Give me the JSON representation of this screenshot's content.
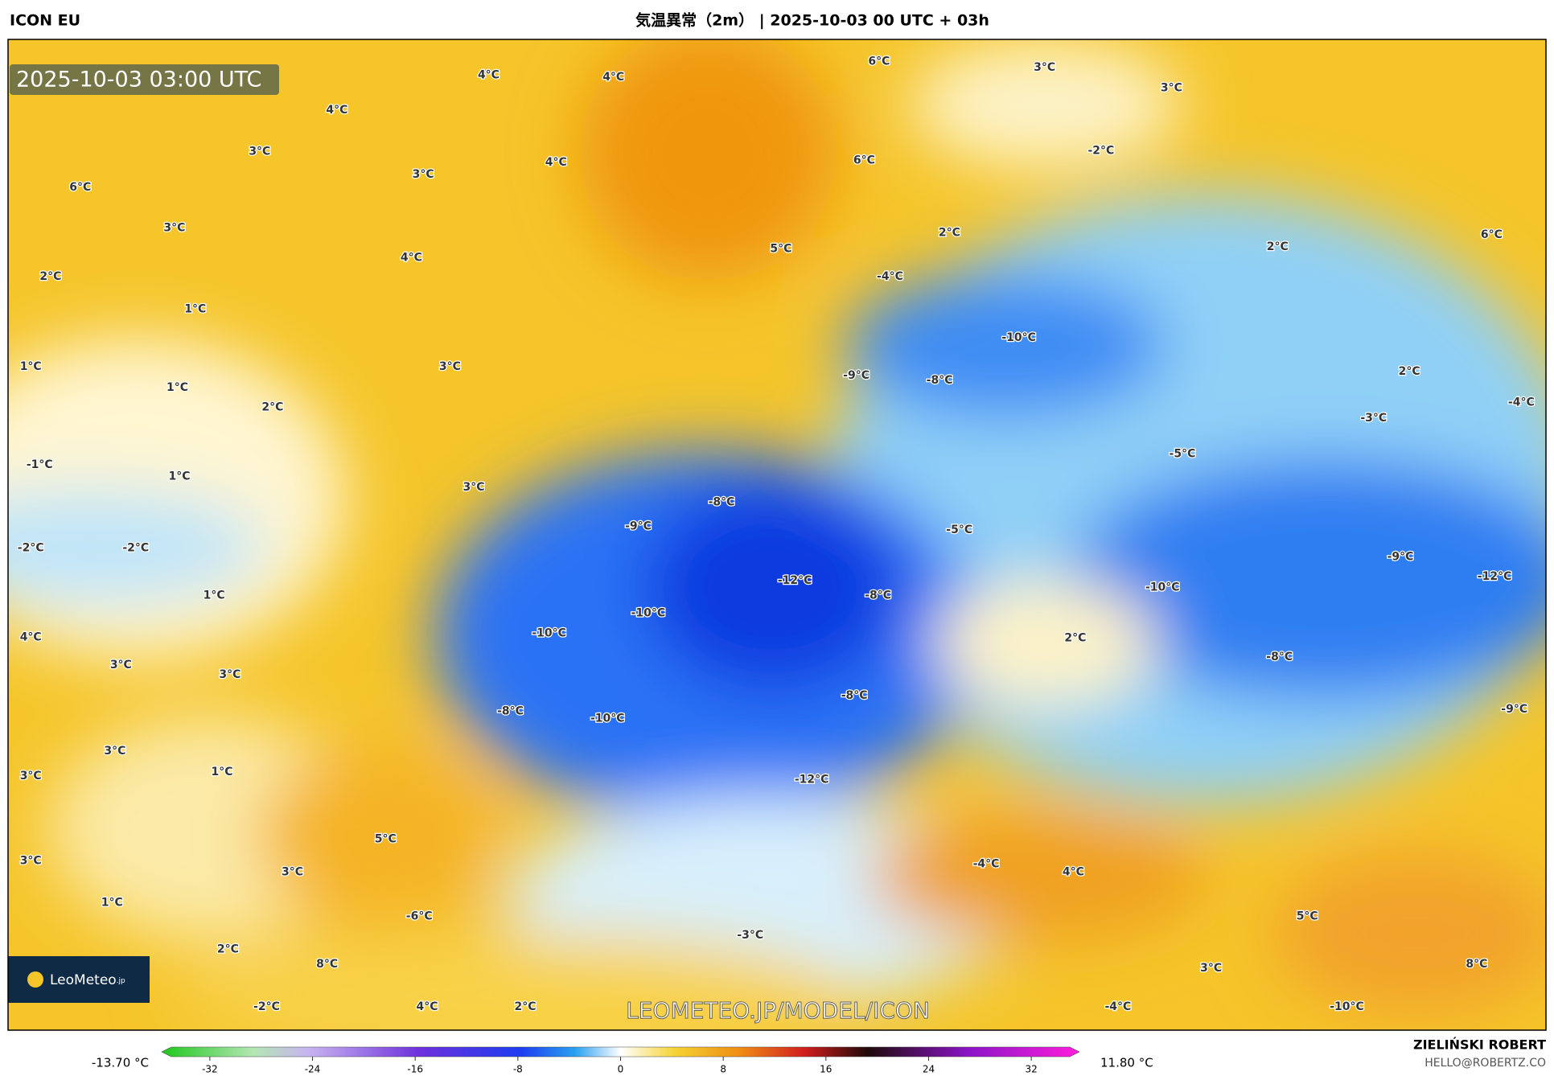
{
  "header": {
    "model": "ICON EU",
    "title": "気温異常（2m） | 2025-10-03 00 UTC + 03h"
  },
  "timestamp": "2025-10-03 03:00 UTC",
  "logo": {
    "brand": "LeoMeteo",
    "suffix": ".jp"
  },
  "watermark": "LEOMETEO.JP/MODEL/ICON",
  "map_labels": [
    "4°C",
    "4°C",
    "4°C",
    "3°C",
    "3°C",
    "4°C",
    "6°C",
    "3°C",
    "4°C",
    "2°C",
    "1°C",
    "1°C",
    "3°C",
    "1°C",
    "2°C",
    "-1°C",
    "1°C",
    "3°C",
    "-2°C",
    "-2°C",
    "1°C",
    "4°C",
    "3°C",
    "3°C",
    "3°C",
    "1°C",
    "3°C",
    "3°C",
    "1°C",
    "2°C",
    "6°C",
    "3°C",
    "3°C",
    "-2°C",
    "6°C",
    "5°C",
    "-4°C",
    "2°C",
    "-10°C",
    "-8°C",
    "-9°C",
    "-5°C",
    "-3°C",
    "-9°C",
    "-8°C",
    "-12°C",
    "-8°C",
    "-5°C",
    "-10°C",
    "-10°C",
    "-8°C",
    "-10°C",
    "-8°C",
    "-12°C",
    "2°C",
    "-10°C",
    "-9°C",
    "-12°C",
    "-8°C",
    "-9°C",
    "5°C",
    "3°C",
    "-6°C",
    "-3°C",
    "4°C",
    "2°C",
    "-2°C",
    "8°C",
    "5°C",
    "8°C",
    "-10°C",
    "-4°C",
    "3°C",
    "4°C",
    "-4°C",
    "6°C",
    "2°C",
    "-4°C",
    "2°C"
  ],
  "colorbar": {
    "min_label": "-13.70 °C",
    "max_label": "11.80 °C",
    "ticks": [
      -32,
      -24,
      -16,
      -8,
      0,
      8,
      16,
      24,
      32
    ],
    "lim": [
      -35,
      35
    ]
  },
  "author": {
    "name": "ZIELIŃSKI ROBERT",
    "email": "HELLO@ROBERTZ.CO"
  }
}
